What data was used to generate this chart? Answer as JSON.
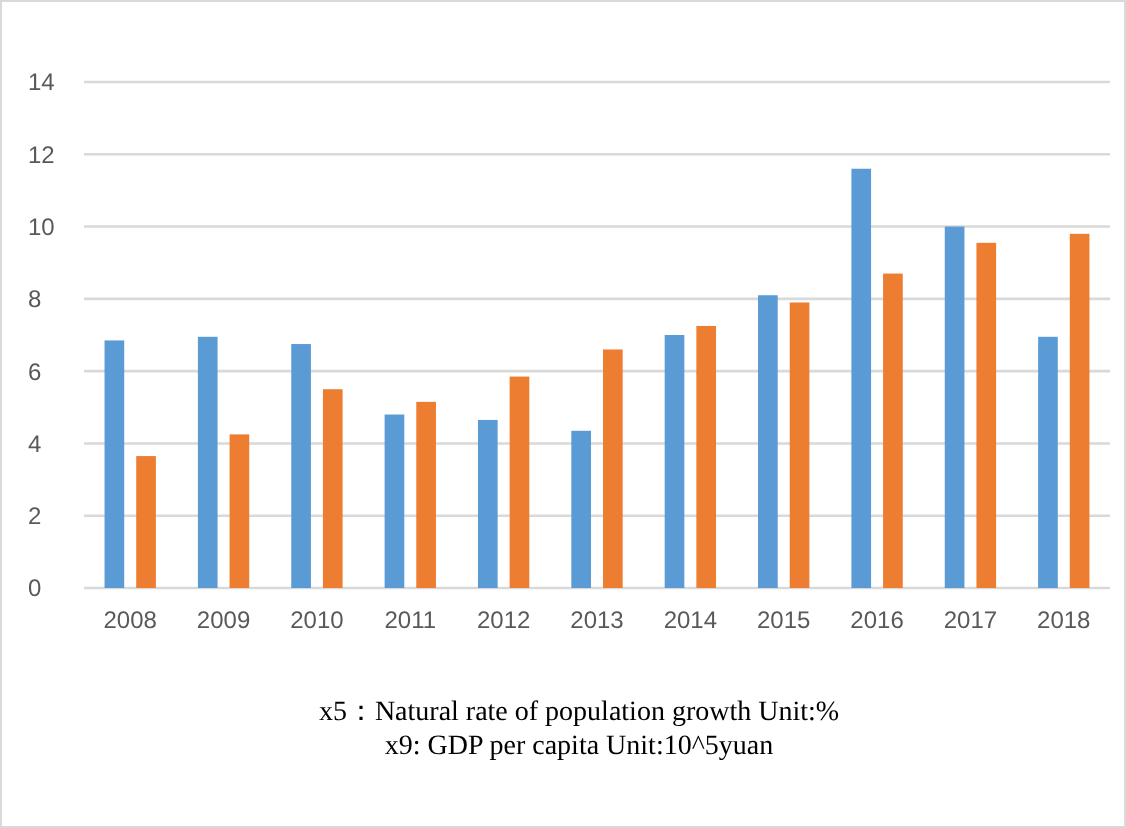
{
  "chart_data": {
    "type": "bar",
    "categories": [
      "2008",
      "2009",
      "2010",
      "2011",
      "2012",
      "2013",
      "2014",
      "2015",
      "2016",
      "2017",
      "2018"
    ],
    "series": [
      {
        "color": "#5b9bd5",
        "values": [
          6.85,
          6.95,
          6.75,
          4.8,
          4.65,
          4.35,
          7.0,
          8.1,
          11.6,
          10.0,
          6.95
        ]
      },
      {
        "color": "#ed7d31",
        "values": [
          3.65,
          4.25,
          5.5,
          5.15,
          5.85,
          6.6,
          7.25,
          7.9,
          8.7,
          9.55,
          9.8
        ]
      }
    ],
    "ylim": [
      0,
      14
    ],
    "yticks": [
      0,
      2,
      4,
      6,
      8,
      10,
      12,
      14
    ],
    "grid": "y",
    "annotations": [
      "x5：Natural rate of population growth  Unit:%",
      "x9: GDP per capita  Unit:10^5yuan"
    ]
  }
}
